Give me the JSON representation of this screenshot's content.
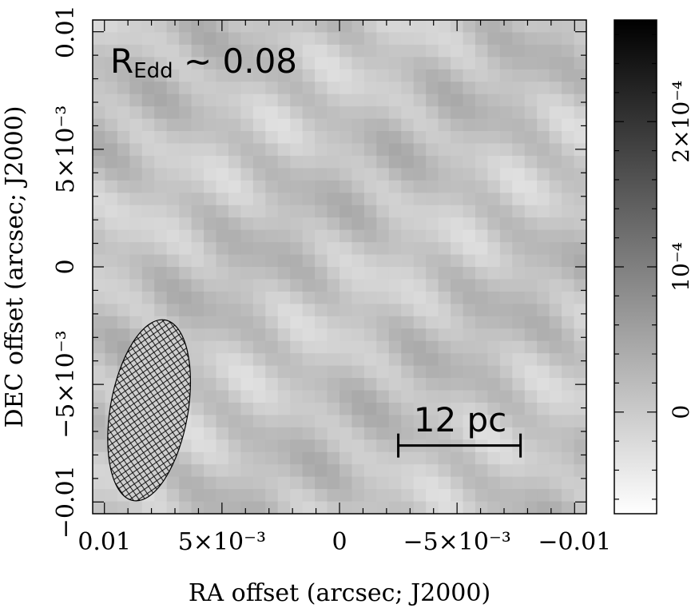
{
  "chart_data": {
    "type": "heatmap",
    "xlabel": "RA offset (arcsec; J2000)",
    "ylabel": "DEC offset (arcsec; J2000)",
    "xlim": [
      0.0105,
      -0.0105
    ],
    "ylim": [
      -0.0105,
      0.0105
    ],
    "x_ticks": [
      {
        "value": 0.01,
        "label": "0.01"
      },
      {
        "value": 0.005,
        "label": "5×10⁻³"
      },
      {
        "value": 0,
        "label": "0"
      },
      {
        "value": -0.005,
        "label": "−5×10⁻³"
      },
      {
        "value": -0.01,
        "label": "−0.01"
      }
    ],
    "y_ticks": [
      {
        "value": -0.01,
        "label": "−0.01"
      },
      {
        "value": -0.005,
        "label": "−5×10⁻³"
      },
      {
        "value": 0,
        "label": "0"
      },
      {
        "value": 0.005,
        "label": "5×10⁻³"
      },
      {
        "value": 0.01,
        "label": "0.01"
      }
    ],
    "colorbar": {
      "range": [
        -7e-05,
        0.00027
      ],
      "ticks": [
        {
          "value": 0,
          "label": "0"
        },
        {
          "value": 0.0001,
          "label": "10⁻⁴"
        },
        {
          "value": 0.0002,
          "label": "2×10⁻⁴"
        }
      ]
    },
    "annotation": {
      "text": "R",
      "sub": "Edd",
      "rest": " ~ 0.08"
    },
    "scalebar": {
      "label": "12 pc",
      "x_start": -0.0025,
      "x_end": -0.0077,
      "y": -0.0076
    },
    "beam": {
      "x_center": 0.0081,
      "y_center": -0.0061,
      "major": 0.0078,
      "minor": 0.0033,
      "pa_deg": 10
    },
    "grid": false,
    "colormap": "white-to-black",
    "colors": {
      "background": "#ffffff",
      "axis": "#000000",
      "beam_fill": "#cfcfcf"
    }
  }
}
